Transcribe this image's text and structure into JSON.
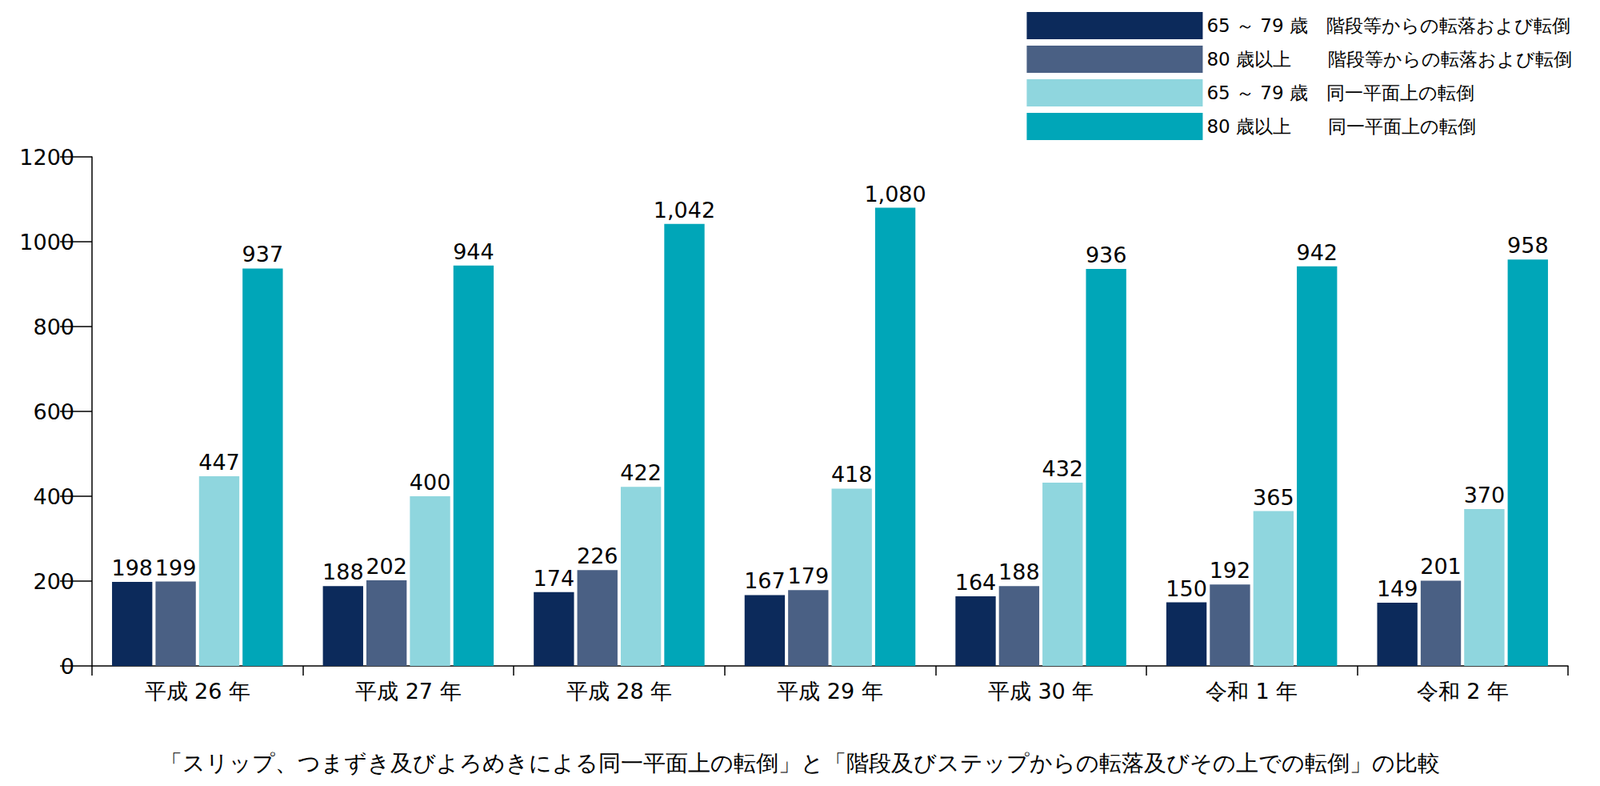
{
  "chart_data": {
    "type": "bar",
    "title": "「スリップ、つまずき及びよろめきによる同一平面上の転倒」と「階段及びステップからの転落及びその上での転倒」の比較",
    "categories": [
      "平成 26 年",
      "平成 27 年",
      "平成 28 年",
      "平成 29 年",
      "平成 30 年",
      "令和 1 年",
      "令和 2 年"
    ],
    "series": [
      {
        "name": "65 ～ 79 歳　階段等からの転落および転倒",
        "color": "#0c2a5b",
        "values": [
          198,
          188,
          174,
          167,
          164,
          150,
          149
        ]
      },
      {
        "name": "80 歳以上　　階段等からの転落および転倒",
        "color": "#4a6084",
        "values": [
          199,
          202,
          226,
          179,
          188,
          192,
          201
        ]
      },
      {
        "name": "65 ～ 79 歳　同一平面上の転倒",
        "color": "#8fd6de",
        "values": [
          447,
          400,
          422,
          418,
          432,
          365,
          370
        ]
      },
      {
        "name": "80 歳以上　　同一平面上の転倒",
        "color": "#00a6b8",
        "values": [
          937,
          944,
          1042,
          1080,
          936,
          942,
          958
        ],
        "value_labels": [
          "937",
          "944",
          "1,042",
          "1,080",
          "936",
          "942",
          "958"
        ]
      }
    ],
    "ylim": [
      0,
      1200
    ],
    "yticks": [
      0,
      200,
      400,
      600,
      800,
      1000,
      1200
    ],
    "grid": false,
    "legend": "top-right",
    "data_labels": true
  }
}
